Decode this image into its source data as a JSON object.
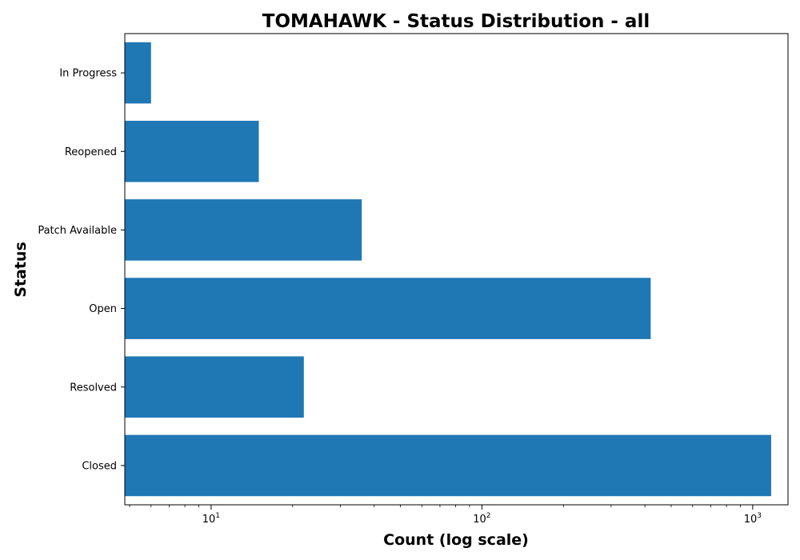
{
  "chart_data": {
    "type": "bar",
    "orientation": "horizontal",
    "title": "TOMAHAWK - Status Distribution - all",
    "xlabel": "Count (log scale)",
    "ylabel": "Status",
    "xscale": "log",
    "xlim": [
      4.8,
      1350
    ],
    "categories": [
      "In Progress",
      "Reopened",
      "Patch Available",
      "Open",
      "Resolved",
      "Closed"
    ],
    "values": [
      6,
      15,
      36,
      420,
      22,
      1170
    ],
    "x_ticks": [
      {
        "base": "10",
        "exp": "1",
        "value": 10
      },
      {
        "base": "10",
        "exp": "2",
        "value": 100
      },
      {
        "base": "10",
        "exp": "3",
        "value": 1000
      }
    ],
    "bar_color": "#1f77b4",
    "grid": false,
    "legend": "none"
  }
}
